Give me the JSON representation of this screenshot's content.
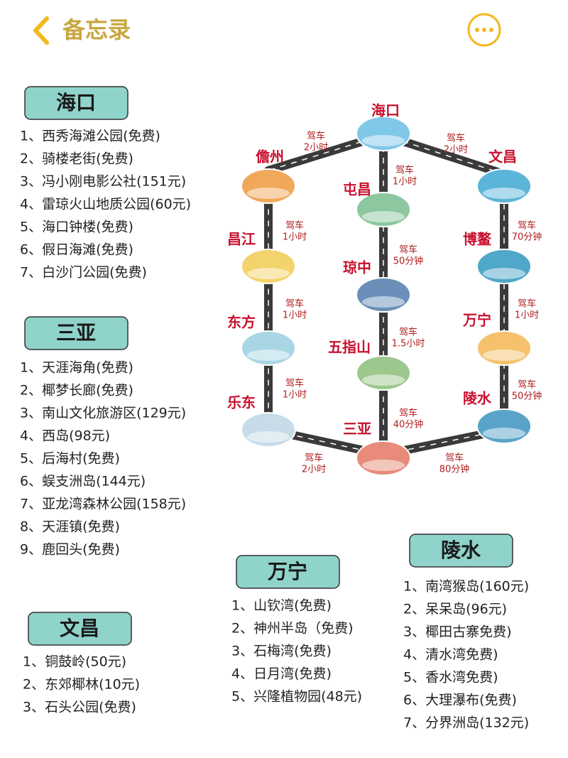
{
  "header": {
    "title": "备忘录"
  },
  "sections": [
    {
      "title": "海口",
      "items": [
        "1、西秀海滩公园(免费)",
        "2、骑楼老街(免费)",
        "3、冯小刚电影公社(151元)",
        "4、雷琼火山地质公园(60元)",
        "5、海口钟楼(免费)",
        "6、假日海滩(免费)",
        "7、白沙门公园(免费)"
      ]
    },
    {
      "title": "三亚",
      "items": [
        "1、天涯海角(免费)",
        "2、椰梦长廊(免费)",
        "3、南山文化旅游区(129元)",
        "4、西岛(98元)",
        "5、后海村(免费)",
        "6、蜈支洲岛(144元)",
        "7、亚龙湾森林公园(158元)",
        "8、天涯镇(免费)",
        "9、鹿回头(免费)"
      ]
    },
    {
      "title": "文昌",
      "items": [
        "1、铜鼓岭(50元)",
        "2、东郊椰林(10元)",
        "3、石头公园(免费)"
      ]
    },
    {
      "title": "万宁",
      "items": [
        "1、山钦湾(免费)",
        "2、神州半岛（免费)",
        "3、石梅湾(免费)",
        "4、日月湾(免费)",
        "5、兴隆植物园(48元)"
      ]
    },
    {
      "title": "陵水",
      "items": [
        "1、南湾猴岛(160元)",
        "2、呆呆岛(96元)",
        "3、椰田古寨免费)",
        "4、清水湾免费)",
        "5、香水湾免费)",
        "6、大理瀑布(免费)",
        "7、分界洲岛(132元)"
      ]
    }
  ],
  "map": {
    "nodes": [
      {
        "label": "海口"
      },
      {
        "label": "儋州"
      },
      {
        "label": "文昌"
      },
      {
        "label": "屯昌"
      },
      {
        "label": "昌江"
      },
      {
        "label": "博鳌"
      },
      {
        "label": "琼中"
      },
      {
        "label": "东方"
      },
      {
        "label": "万宁"
      },
      {
        "label": "五指山"
      },
      {
        "label": "乐东"
      },
      {
        "label": "陵水"
      },
      {
        "label": "三亚"
      }
    ],
    "edges": [
      {
        "lines": [
          "驾车",
          "2小时"
        ]
      },
      {
        "lines": [
          "驾车",
          "2小时"
        ]
      },
      {
        "lines": [
          "驾车",
          "1小时"
        ]
      },
      {
        "lines": [
          "驾车",
          "1小时"
        ]
      },
      {
        "lines": [
          "驾车",
          "70分钟"
        ]
      },
      {
        "lines": [
          "驾车",
          "50分钟"
        ]
      },
      {
        "lines": [
          "驾车",
          "1小时"
        ]
      },
      {
        "lines": [
          "驾车",
          "1小时"
        ]
      },
      {
        "lines": [
          "驾车",
          "1.5小时"
        ]
      },
      {
        "lines": [
          "驾车",
          "1小时"
        ]
      },
      {
        "lines": [
          "驾车",
          "50分钟"
        ]
      },
      {
        "lines": [
          "驾车",
          "40分钟"
        ]
      },
      {
        "lines": [
          "驾车",
          "2小时"
        ]
      },
      {
        "lines": [
          "驾车",
          "80分钟"
        ]
      }
    ]
  }
}
